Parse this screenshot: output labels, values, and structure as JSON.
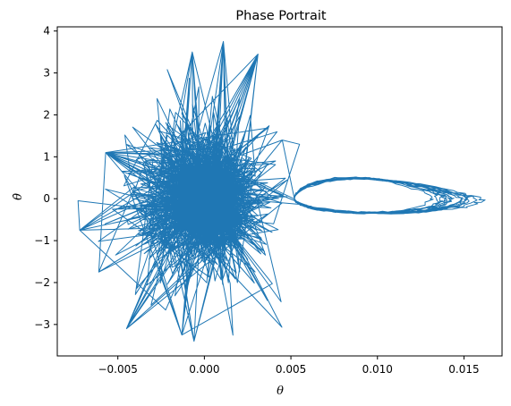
{
  "chart_data": {
    "type": "line",
    "title": "Phase Portrait",
    "xlabel": "θ",
    "ylabel": "θ̇",
    "xlim": [
      -0.0085,
      0.0172
    ],
    "ylim": [
      -3.75,
      4.1
    ],
    "xticks": [
      -0.005,
      0.0,
      0.005,
      0.01,
      0.015
    ],
    "xtick_labels": [
      "−0.005",
      "0.000",
      "0.005",
      "0.010",
      "0.015"
    ],
    "yticks": [
      -3,
      -2,
      -1,
      0,
      1,
      2,
      3,
      4
    ],
    "ytick_labels": [
      "−3",
      "−2",
      "−1",
      "0",
      "1",
      "2",
      "3",
      "4"
    ],
    "grid": false,
    "series": [
      {
        "color": "#1f77b4",
        "description": "Phase trajectory: dense chaotic cloud for theta in [-0.0073, 0.0045] with theta-dot spanning about -3.4 to 3.7, plus a closed loop extending to theta about 0.016 with theta-dot about 0.5 to -0.35",
        "key_points": [
          {
            "x": -0.0073,
            "y": -0.05
          },
          {
            "x": -0.0072,
            "y": -0.75
          },
          {
            "x": -0.0061,
            "y": -1.75
          },
          {
            "x": -0.0057,
            "y": 1.1
          },
          {
            "x": -0.0045,
            "y": -3.1
          },
          {
            "x": -0.0025,
            "y": 3.2
          },
          {
            "x": -0.0013,
            "y": -3.25
          },
          {
            "x": -0.0007,
            "y": 3.5
          },
          {
            "x": -0.0006,
            "y": -3.4
          },
          {
            "x": 0.0011,
            "y": 3.75
          },
          {
            "x": 0.0031,
            "y": 3.45
          },
          {
            "x": 0.0045,
            "y": 1.4
          },
          {
            "x": 0.0055,
            "y": 1.3
          },
          {
            "x": 0.0058,
            "y": 0.55
          },
          {
            "x": 0.008,
            "y": 0.55
          },
          {
            "x": 0.012,
            "y": 0.45
          },
          {
            "x": 0.0145,
            "y": 0.3
          },
          {
            "x": 0.0159,
            "y": 0.1
          },
          {
            "x": 0.0162,
            "y": 0.05
          },
          {
            "x": 0.0155,
            "y": -0.1
          },
          {
            "x": 0.014,
            "y": -0.2
          },
          {
            "x": 0.011,
            "y": -0.3
          },
          {
            "x": 0.008,
            "y": -0.35
          },
          {
            "x": 0.0052,
            "y": -0.3
          }
        ]
      }
    ]
  }
}
